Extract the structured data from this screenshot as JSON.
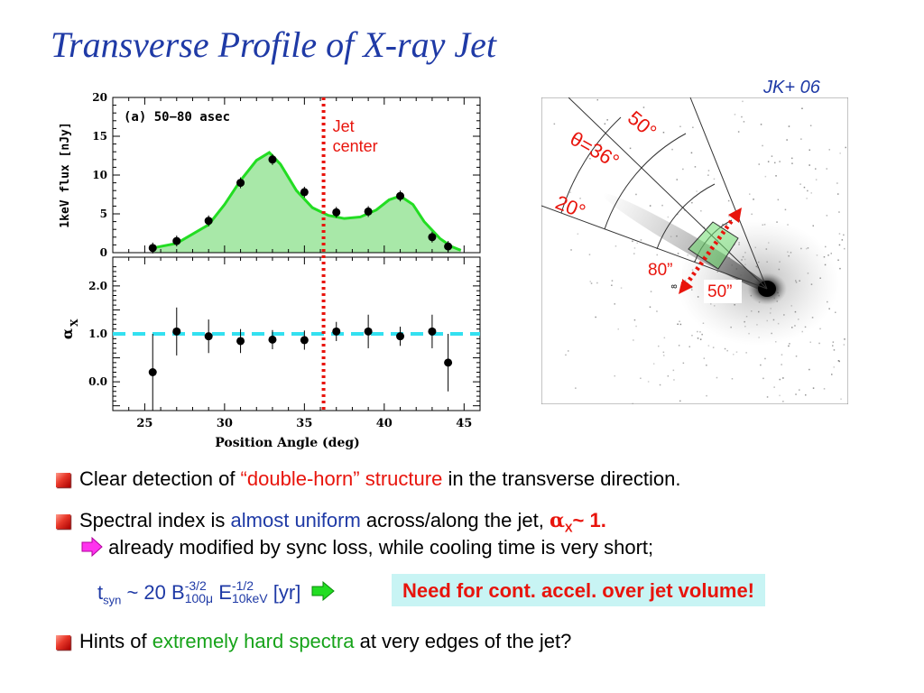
{
  "slide": {
    "title": "Transverse Profile of X-ray Jet",
    "reference": "JK+ 06"
  },
  "bullets": {
    "b1": {
      "pre": "Clear detection of ",
      "highlight": "“double-horn” structure",
      "post": " in the transverse direction."
    },
    "b2": {
      "pre": "Spectral index is ",
      "highlight": "almost uniform",
      "mid": " across/along the jet, ",
      "alpha": "α",
      "sub": "X",
      "post": "~ 1."
    },
    "b2_arrow": "already modified by sync loss, while cooling time is very short;",
    "tsyn": {
      "t": "t",
      "t_sub": "syn",
      "mid": " ~ 20 B",
      "b_sup": "-3/2",
      "b_sub": "100μ",
      "e": " E",
      "e_sup": "-1/2",
      "e_sub": "10keV",
      "unit": " [yr]"
    },
    "callout": "Need for cont. accel. over jet volume!",
    "b3": {
      "pre": "Hints of ",
      "highlight": "extremely hard spectra",
      "post": " at very edges of the jet?"
    }
  },
  "image_labels": {
    "angle50": "50°",
    "theta": "θ=36°",
    "angle20": "20°",
    "r80": "80”",
    "r50": "50”"
  },
  "chart_data": [
    {
      "type": "scatter",
      "panel": "(a) 50−80 asec",
      "ylabel": "1keV flux [nJy]",
      "xlabel": "Position Angle (deg)",
      "x": [
        25.5,
        27,
        29,
        31,
        33,
        35,
        37,
        39,
        41,
        43,
        44
      ],
      "y": [
        0.6,
        1.5,
        4.1,
        9.0,
        12.0,
        7.8,
        5.2,
        5.3,
        7.3,
        2.0,
        0.8
      ],
      "fit_curve": {
        "x": [
          25.5,
          27,
          29,
          30,
          31,
          32,
          32.8,
          33.5,
          34.5,
          35.5,
          36.5,
          37.5,
          38.5,
          39.5,
          40.3,
          41,
          41.8,
          42.5,
          43.5,
          44.2,
          44.8
        ],
        "y": [
          0.6,
          1.2,
          3.6,
          6.2,
          9.3,
          11.9,
          12.9,
          11.4,
          8.0,
          5.8,
          4.8,
          4.4,
          4.6,
          5.5,
          6.8,
          7.3,
          6.2,
          4.0,
          1.8,
          0.8,
          0.3
        ]
      },
      "jet_center_x": 36.2,
      "jet_center_label": [
        "Jet",
        "center"
      ],
      "xlim": [
        23,
        46
      ],
      "ylim": [
        0,
        20
      ],
      "yticks": [
        "0",
        "5",
        "10",
        "15",
        "20"
      ],
      "line_color": "#22dd22",
      "fill_color": "#a8e8a8",
      "marker_color": "#000000",
      "center_color": "#e8140c"
    },
    {
      "type": "scatter",
      "ylabel": "α",
      "ylabel_sub": "X",
      "xlabel": "Position Angle (deg)",
      "x": [
        25.5,
        27,
        29,
        31,
        33,
        35,
        37,
        39,
        41,
        43,
        44
      ],
      "y": [
        0.2,
        1.05,
        0.95,
        0.85,
        0.88,
        0.87,
        1.05,
        1.05,
        0.95,
        1.05,
        0.4
      ],
      "err": [
        0.8,
        0.5,
        0.35,
        0.25,
        0.2,
        0.2,
        0.2,
        0.35,
        0.2,
        0.35,
        0.6
      ],
      "reference_line": 1.0,
      "ylim": [
        2.6,
        -0.6
      ],
      "yticks": [
        "0.0",
        "1.0",
        "2.0"
      ],
      "xticks": [
        "25",
        "30",
        "35",
        "40",
        "45"
      ],
      "ref_color": "#33e0f0"
    }
  ]
}
